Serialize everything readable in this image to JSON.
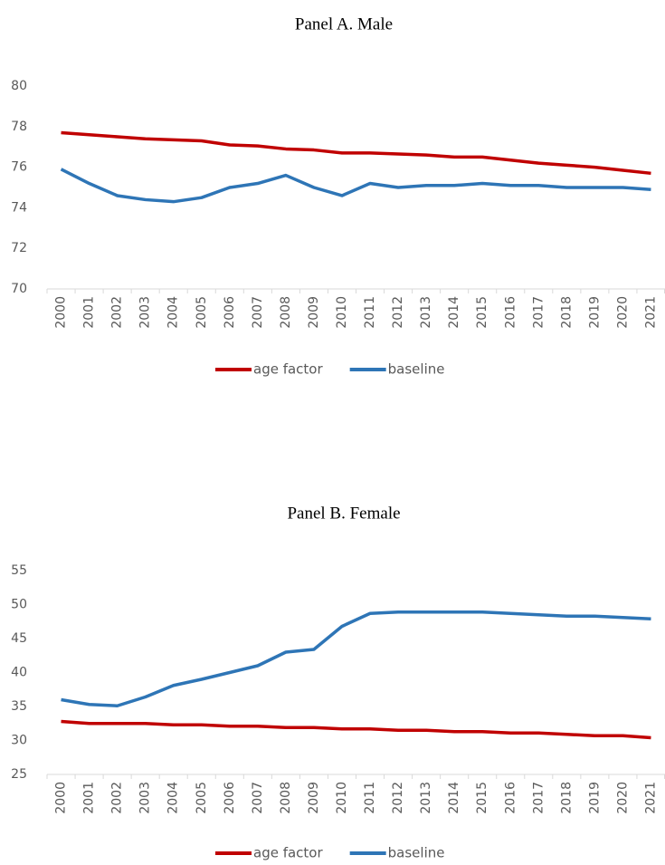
{
  "chart_data": [
    {
      "type": "line",
      "title": "Panel A. Male",
      "categories": [
        "2000",
        "2001",
        "2002",
        "2003",
        "2004",
        "2005",
        "2006",
        "2007",
        "2008",
        "2009",
        "2010",
        "2011",
        "2012",
        "2013",
        "2014",
        "2015",
        "2016",
        "2017",
        "2018",
        "2019",
        "2020",
        "2021"
      ],
      "series": [
        {
          "name": "age factor",
          "color": "#c00000",
          "values": [
            77.7,
            77.6,
            77.5,
            77.4,
            77.35,
            77.3,
            77.1,
            77.05,
            76.9,
            76.85,
            76.7,
            76.7,
            76.65,
            76.6,
            76.5,
            76.5,
            76.35,
            76.2,
            76.1,
            76.0,
            75.85,
            75.7
          ]
        },
        {
          "name": "baseline",
          "color": "#2e75b6",
          "values": [
            75.9,
            75.2,
            74.6,
            74.4,
            74.3,
            74.5,
            75.0,
            75.2,
            75.6,
            75.0,
            74.6,
            75.2,
            75.0,
            75.1,
            75.1,
            75.2,
            75.1,
            75.1,
            75.0,
            75.0,
            75.0,
            74.9
          ]
        }
      ],
      "ylim": [
        70,
        80
      ],
      "yticks": [
        70,
        72,
        74,
        76,
        78,
        80
      ],
      "grid": false,
      "legend": "bottom"
    },
    {
      "type": "line",
      "title": "Panel B. Female",
      "categories": [
        "2000",
        "2001",
        "2002",
        "2003",
        "2004",
        "2005",
        "2006",
        "2007",
        "2008",
        "2009",
        "2010",
        "2011",
        "2012",
        "2013",
        "2014",
        "2015",
        "2016",
        "2017",
        "2018",
        "2019",
        "2020",
        "2021"
      ],
      "series": [
        {
          "name": "age factor",
          "color": "#c00000",
          "values": [
            32.8,
            32.5,
            32.5,
            32.5,
            32.3,
            32.3,
            32.1,
            32.1,
            31.9,
            31.9,
            31.7,
            31.7,
            31.5,
            31.5,
            31.3,
            31.3,
            31.1,
            31.1,
            30.9,
            30.7,
            30.7,
            30.4
          ]
        },
        {
          "name": "baseline",
          "color": "#2e75b6",
          "values": [
            36,
            35.3,
            35.1,
            36.4,
            38.1,
            39,
            40,
            41,
            43,
            43.4,
            46.8,
            48.7,
            48.9,
            48.9,
            48.9,
            48.9,
            48.7,
            48.5,
            48.3,
            48.3,
            48.1,
            47.9
          ]
        }
      ],
      "ylim": [
        25,
        55
      ],
      "yticks": [
        25,
        30,
        35,
        40,
        45,
        50,
        55
      ],
      "grid": false,
      "legend": "bottom"
    }
  ]
}
